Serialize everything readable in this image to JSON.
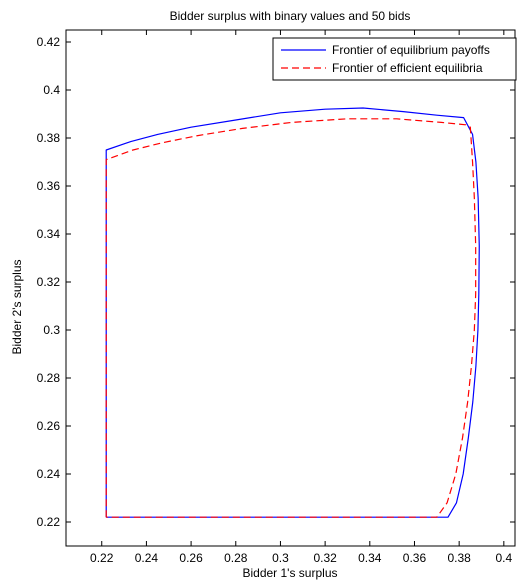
{
  "chart_data": {
    "type": "line",
    "title": "Bidder surplus with binary values and 50 bids",
    "xlabel": "Bidder 1's surplus",
    "ylabel": "Bidder 2's surplus",
    "xlim": [
      0.204,
      0.405
    ],
    "ylim": [
      0.21,
      0.425
    ],
    "xticks": [
      0.22,
      0.24,
      0.26,
      0.28,
      0.3,
      0.32,
      0.34,
      0.36,
      0.38,
      0.4
    ],
    "xtick_labels": [
      "0.22",
      "0.24",
      "0.26",
      "0.28",
      "0.3",
      "0.32",
      "0.34",
      "0.36",
      "0.38",
      "0.4"
    ],
    "yticks": [
      0.22,
      0.24,
      0.26,
      0.28,
      0.3,
      0.32,
      0.34,
      0.36,
      0.38,
      0.4,
      0.42
    ],
    "ytick_labels": [
      "0.22",
      "0.24",
      "0.26",
      "0.28",
      "0.3",
      "0.32",
      "0.34",
      "0.36",
      "0.38",
      "0.4",
      "0.42"
    ],
    "grid": false,
    "legend": "top-right",
    "series": [
      {
        "name": "Frontier of equilibrium payoffs",
        "color": "#0000ff",
        "style": "solid",
        "x": [
          0.222,
          0.222,
          0.233,
          0.245,
          0.26,
          0.28,
          0.3,
          0.32,
          0.337,
          0.355,
          0.37,
          0.382,
          0.386,
          0.3875,
          0.3885,
          0.389,
          0.3888,
          0.3884,
          0.3875,
          0.3861,
          0.3841,
          0.3818,
          0.3788,
          0.375,
          0.222
        ],
        "y": [
          0.222,
          0.375,
          0.3785,
          0.3815,
          0.3845,
          0.3875,
          0.3905,
          0.392,
          0.3925,
          0.391,
          0.3895,
          0.3885,
          0.3815,
          0.37,
          0.355,
          0.335,
          0.315,
          0.3,
          0.285,
          0.27,
          0.255,
          0.24,
          0.228,
          0.222,
          0.222
        ]
      },
      {
        "name": "Frontier of efficient equilibria",
        "color": "#ff0000",
        "style": "dashed",
        "x": [
          0.222,
          0.222,
          0.234,
          0.247,
          0.263,
          0.283,
          0.305,
          0.33,
          0.352,
          0.372,
          0.383,
          0.385,
          0.386,
          0.3868,
          0.3874,
          0.3874,
          0.3868,
          0.3855,
          0.3838,
          0.3815,
          0.3785,
          0.3746,
          0.37,
          0.222
        ],
        "y": [
          0.222,
          0.371,
          0.375,
          0.378,
          0.381,
          0.384,
          0.3865,
          0.388,
          0.388,
          0.3865,
          0.3855,
          0.3845,
          0.37,
          0.355,
          0.335,
          0.315,
          0.3,
          0.285,
          0.27,
          0.255,
          0.24,
          0.228,
          0.222,
          0.222
        ]
      }
    ]
  }
}
